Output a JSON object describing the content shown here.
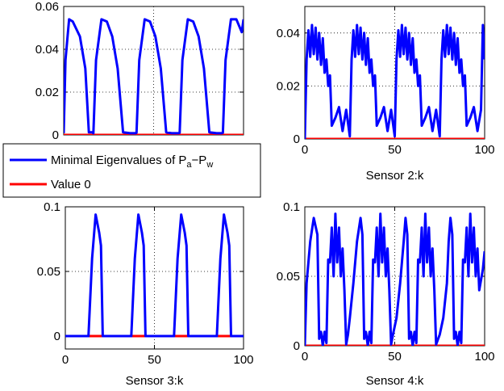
{
  "colors": {
    "series1": "#0000ff",
    "series2": "#ff0000",
    "grid": "#000000",
    "axes": "#000000"
  },
  "legend": {
    "entry1_prefix": "Minimal Eigenvalues of P",
    "entry1_sub_a": "a",
    "entry1_dash": "−P",
    "entry1_sub_w": "w",
    "entry2": "Value 0"
  },
  "chart_data": [
    {
      "type": "line",
      "panel": 1,
      "xlabel": "",
      "xlim": [
        0,
        100
      ],
      "ylim": [
        0,
        0.06
      ],
      "xticks": [],
      "yticks": [
        0,
        0.02,
        0.04,
        0.06
      ],
      "ytick_labels": [
        "0",
        "0.02",
        "0.04",
        "0.06"
      ],
      "grid": true,
      "series": [
        {
          "name": "Minimal Eigenvalues of Pa-Pw",
          "x": [
            0,
            1,
            3,
            5,
            9,
            12,
            14,
            16,
            16.5,
            18,
            21,
            24,
            27,
            30,
            33,
            37,
            40,
            40.5,
            42,
            45,
            48,
            51,
            54,
            57,
            60,
            64,
            64.5,
            66,
            69,
            72,
            75,
            78,
            81,
            85,
            88,
            88.5,
            90,
            93,
            96,
            99,
            100
          ],
          "y": [
            0.0008,
            0.035,
            0.054,
            0.053,
            0.046,
            0.031,
            0.0012,
            0.0012,
            0.0008,
            0.035,
            0.054,
            0.053,
            0.046,
            0.031,
            0.0012,
            0.0008,
            0.0008,
            0.001,
            0.035,
            0.054,
            0.053,
            0.046,
            0.031,
            0.0012,
            0.0008,
            0.0008,
            0.001,
            0.035,
            0.054,
            0.053,
            0.046,
            0.031,
            0.0012,
            0.0008,
            0.0008,
            0.001,
            0.035,
            0.054,
            0.054,
            0.048,
            0.054
          ]
        },
        {
          "name": "Value 0",
          "x": [
            0,
            100
          ],
          "y": [
            0,
            0
          ]
        }
      ]
    },
    {
      "type": "line",
      "panel": 2,
      "xlabel": "Sensor 2:k",
      "xlim": [
        0,
        100
      ],
      "ylim": [
        0,
        0.05
      ],
      "xticks": [
        0,
        50,
        100
      ],
      "yticks": [
        0,
        0.02,
        0.04
      ],
      "ytick_labels": [
        "0",
        "0.02",
        "0.04"
      ],
      "grid": true,
      "series": [
        {
          "name": "Minimal Eigenvalues of Pa-Pw",
          "x": [
            0,
            1,
            2,
            3,
            4,
            5,
            6,
            7,
            8,
            9,
            10,
            11,
            12,
            13,
            14,
            15,
            17,
            19,
            21,
            23,
            25,
            26,
            27,
            28,
            29,
            30,
            31,
            32,
            33,
            34,
            35,
            36,
            37,
            38,
            39,
            40,
            42,
            44,
            46,
            48,
            50,
            51,
            52,
            53,
            54,
            55,
            56,
            57,
            58,
            59,
            60,
            61,
            62,
            63,
            64,
            65,
            67,
            69,
            71,
            73,
            75,
            76,
            77,
            78,
            79,
            80,
            81,
            82,
            83,
            84,
            85,
            86,
            87,
            88,
            89,
            90,
            92,
            94,
            96,
            98,
            99,
            100
          ],
          "y": [
            0,
            0.03,
            0.041,
            0.031,
            0.043,
            0.032,
            0.042,
            0.03,
            0.04,
            0.028,
            0.038,
            0.025,
            0.03,
            0.02,
            0.024,
            0.005,
            0.008,
            0.012,
            0.003,
            0.011,
            0.001,
            0.03,
            0.041,
            0.031,
            0.043,
            0.032,
            0.042,
            0.03,
            0.04,
            0.028,
            0.038,
            0.025,
            0.03,
            0.02,
            0.024,
            0.005,
            0.008,
            0.012,
            0.003,
            0.011,
            0.001,
            0.03,
            0.041,
            0.031,
            0.043,
            0.032,
            0.042,
            0.03,
            0.04,
            0.028,
            0.038,
            0.025,
            0.03,
            0.02,
            0.024,
            0.005,
            0.008,
            0.012,
            0.003,
            0.011,
            0.001,
            0.03,
            0.041,
            0.031,
            0.043,
            0.032,
            0.042,
            0.03,
            0.04,
            0.028,
            0.038,
            0.025,
            0.03,
            0.02,
            0.024,
            0.005,
            0.008,
            0.012,
            0.003,
            0.011,
            0.043,
            0.03
          ]
        },
        {
          "name": "Value 0",
          "x": [
            0,
            100
          ],
          "y": [
            0,
            0
          ]
        }
      ]
    },
    {
      "type": "line",
      "panel": 3,
      "xlabel": "Sensor 3:k",
      "xlim": [
        0,
        100
      ],
      "ylim": [
        -0.01,
        0.1
      ],
      "xticks": [
        0,
        50,
        100
      ],
      "yticks": [
        0,
        0.05,
        0.1
      ],
      "ytick_labels": [
        "0",
        "0.05",
        "0.1"
      ],
      "grid": true,
      "series": [
        {
          "name": "Minimal Eigenvalues of Pa-Pw",
          "x": [
            0,
            13,
            15,
            17,
            19,
            20,
            21,
            37,
            39,
            41,
            43,
            44,
            45,
            61,
            63,
            65,
            67,
            68,
            69,
            85,
            87,
            89,
            91,
            92,
            93,
            100
          ],
          "y": [
            0,
            0,
            0.06,
            0.094,
            0.08,
            0.07,
            0,
            0,
            0.06,
            0.094,
            0.08,
            0.07,
            0,
            0,
            0.06,
            0.094,
            0.08,
            0.07,
            0,
            0,
            0.06,
            0.094,
            0.08,
            0.07,
            0,
            0
          ]
        },
        {
          "name": "Value 0",
          "x": [
            0,
            100
          ],
          "y": [
            0,
            0
          ]
        }
      ]
    },
    {
      "type": "line",
      "panel": 4,
      "xlabel": "Sensor 4:k",
      "xlim": [
        0,
        100
      ],
      "ylim": [
        0,
        0.1
      ],
      "xticks": [
        0,
        50,
        100
      ],
      "yticks": [
        0,
        0.05,
        0.1
      ],
      "ytick_labels": [
        "0",
        "0.05",
        "0.1"
      ],
      "grid": true,
      "series": [
        {
          "name": "Minimal Eigenvalues of Pa-Pw",
          "x": [
            0,
            1,
            3,
            5,
            7,
            8,
            9,
            10,
            11,
            12,
            13,
            14,
            15,
            16,
            17,
            18,
            19,
            20,
            21,
            22,
            23,
            24,
            25,
            27,
            29,
            31,
            32,
            33,
            34,
            35,
            36,
            37,
            38,
            39,
            40,
            41,
            42,
            43,
            44,
            45,
            46,
            47,
            48,
            49,
            51,
            53,
            55,
            56,
            57,
            58,
            59,
            60,
            61,
            62,
            63,
            64,
            65,
            66,
            67,
            68,
            69,
            70,
            71,
            72,
            73,
            75,
            77,
            79,
            80,
            81,
            82,
            83,
            84,
            85,
            86,
            87,
            88,
            89,
            90,
            91,
            92,
            93,
            94,
            95,
            96,
            97,
            99,
            100
          ],
          "y": [
            0,
            0.045,
            0.075,
            0.092,
            0.08,
            0.005,
            0.01,
            0,
            0.01,
            0.002,
            0.062,
            0.06,
            0.085,
            0.05,
            0.095,
            0.06,
            0.085,
            0.05,
            0.07,
            0.04,
            0.001,
            0.008,
            0.02,
            0.045,
            0.075,
            0.092,
            0.08,
            0.005,
            0.01,
            0,
            0.01,
            0.002,
            0.062,
            0.06,
            0.085,
            0.05,
            0.095,
            0.06,
            0.085,
            0.05,
            0.07,
            0.04,
            0.001,
            0.008,
            0.02,
            0.045,
            0.075,
            0.092,
            0.08,
            0.005,
            0.01,
            0,
            0.01,
            0.002,
            0.062,
            0.06,
            0.085,
            0.05,
            0.095,
            0.06,
            0.085,
            0.05,
            0.07,
            0.04,
            0.001,
            0.008,
            0.02,
            0.045,
            0.075,
            0.092,
            0.08,
            0.005,
            0.01,
            0,
            0.01,
            0.002,
            0.062,
            0.06,
            0.085,
            0.05,
            0.095,
            0.06,
            0.085,
            0.05,
            0.07,
            0.04,
            0.055,
            0.068
          ]
        },
        {
          "name": "Value 0",
          "x": [
            0,
            100
          ],
          "y": [
            0,
            0
          ]
        }
      ]
    }
  ]
}
